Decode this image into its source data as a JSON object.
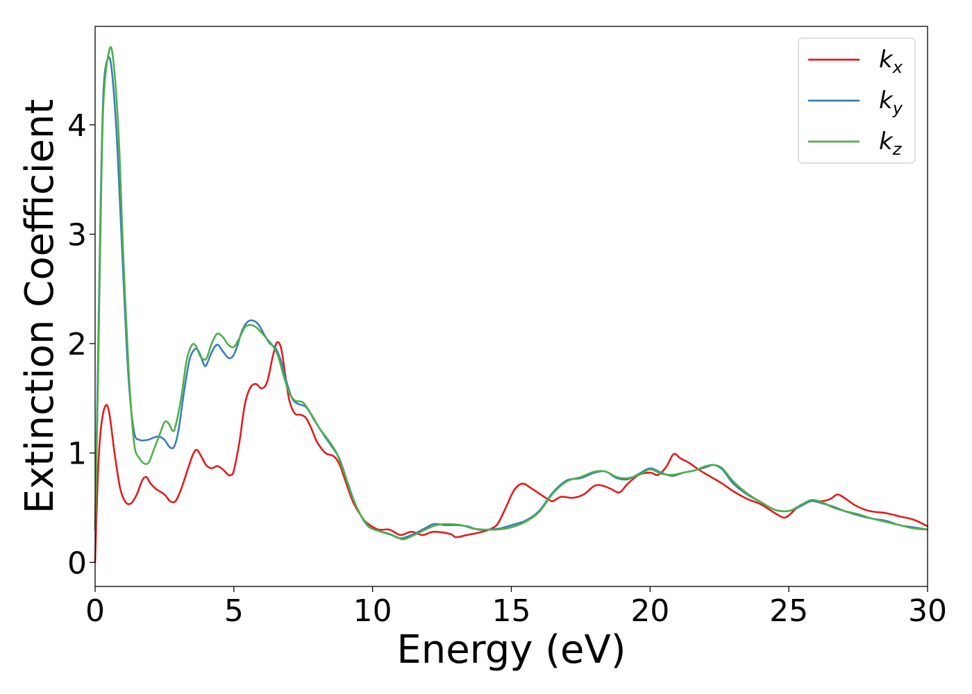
{
  "chart_data": {
    "type": "line",
    "title": "",
    "xlabel": "Energy (eV)",
    "ylabel": "Extinction Coefficient",
    "xlim": [
      0,
      30
    ],
    "ylim": [
      -0.22,
      4.9
    ],
    "xticks": [
      0,
      5,
      10,
      15,
      20,
      25,
      30
    ],
    "yticks": [
      0,
      1,
      2,
      3,
      4
    ],
    "xtick_labels": [
      "0",
      "5",
      "10",
      "15",
      "20",
      "25",
      "30"
    ],
    "ytick_labels": [
      "0",
      "1",
      "2",
      "3",
      "4"
    ],
    "grid": false,
    "legend_position": "top-right",
    "series": [
      {
        "name": "k_x",
        "legend_base": "k",
        "legend_sub": "x",
        "color": "#e41a1c",
        "points": [
          [
            0,
            0
          ],
          [
            0.1,
            0.8
          ],
          [
            0.2,
            1.2
          ],
          [
            0.35,
            1.42
          ],
          [
            0.5,
            1.38
          ],
          [
            0.7,
            1.0
          ],
          [
            0.9,
            0.68
          ],
          [
            1.1,
            0.55
          ],
          [
            1.3,
            0.54
          ],
          [
            1.5,
            0.62
          ],
          [
            1.7,
            0.75
          ],
          [
            1.85,
            0.78
          ],
          [
            2.0,
            0.72
          ],
          [
            2.2,
            0.67
          ],
          [
            2.5,
            0.62
          ],
          [
            2.7,
            0.56
          ],
          [
            2.9,
            0.56
          ],
          [
            3.1,
            0.67
          ],
          [
            3.3,
            0.82
          ],
          [
            3.5,
            0.97
          ],
          [
            3.65,
            1.03
          ],
          [
            3.8,
            0.98
          ],
          [
            4.0,
            0.89
          ],
          [
            4.2,
            0.86
          ],
          [
            4.4,
            0.88
          ],
          [
            4.6,
            0.85
          ],
          [
            4.8,
            0.8
          ],
          [
            4.9,
            0.8
          ],
          [
            5.0,
            0.84
          ],
          [
            5.2,
            1.1
          ],
          [
            5.4,
            1.45
          ],
          [
            5.6,
            1.6
          ],
          [
            5.8,
            1.63
          ],
          [
            6.0,
            1.59
          ],
          [
            6.2,
            1.65
          ],
          [
            6.4,
            1.88
          ],
          [
            6.55,
            2.01
          ],
          [
            6.7,
            1.96
          ],
          [
            6.85,
            1.72
          ],
          [
            7.0,
            1.48
          ],
          [
            7.2,
            1.36
          ],
          [
            7.4,
            1.35
          ],
          [
            7.6,
            1.32
          ],
          [
            7.8,
            1.22
          ],
          [
            8.0,
            1.1
          ],
          [
            8.3,
            1.0
          ],
          [
            8.6,
            0.97
          ],
          [
            8.8,
            0.9
          ],
          [
            9.0,
            0.76
          ],
          [
            9.3,
            0.55
          ],
          [
            9.6,
            0.42
          ],
          [
            9.8,
            0.36
          ],
          [
            10.2,
            0.3
          ],
          [
            10.6,
            0.3
          ],
          [
            11.0,
            0.25
          ],
          [
            11.4,
            0.28
          ],
          [
            11.8,
            0.25
          ],
          [
            12.2,
            0.28
          ],
          [
            12.8,
            0.26
          ],
          [
            13.0,
            0.23
          ],
          [
            13.4,
            0.25
          ],
          [
            13.8,
            0.27
          ],
          [
            14.2,
            0.3
          ],
          [
            14.5,
            0.35
          ],
          [
            14.8,
            0.5
          ],
          [
            15.1,
            0.66
          ],
          [
            15.4,
            0.72
          ],
          [
            15.7,
            0.68
          ],
          [
            16.0,
            0.63
          ],
          [
            16.3,
            0.58
          ],
          [
            16.5,
            0.56
          ],
          [
            16.8,
            0.6
          ],
          [
            17.2,
            0.59
          ],
          [
            17.6,
            0.62
          ],
          [
            18.0,
            0.7
          ],
          [
            18.3,
            0.7
          ],
          [
            18.6,
            0.67
          ],
          [
            18.9,
            0.64
          ],
          [
            19.2,
            0.72
          ],
          [
            19.6,
            0.8
          ],
          [
            20.0,
            0.82
          ],
          [
            20.3,
            0.8
          ],
          [
            20.6,
            0.88
          ],
          [
            20.85,
            0.99
          ],
          [
            21.1,
            0.95
          ],
          [
            21.4,
            0.91
          ],
          [
            21.8,
            0.84
          ],
          [
            22.2,
            0.78
          ],
          [
            22.6,
            0.72
          ],
          [
            23.0,
            0.65
          ],
          [
            23.5,
            0.58
          ],
          [
            24.0,
            0.53
          ],
          [
            24.5,
            0.45
          ],
          [
            24.8,
            0.41
          ],
          [
            25.0,
            0.43
          ],
          [
            25.4,
            0.52
          ],
          [
            25.8,
            0.56
          ],
          [
            26.2,
            0.56
          ],
          [
            26.5,
            0.58
          ],
          [
            26.75,
            0.62
          ],
          [
            27.0,
            0.59
          ],
          [
            27.4,
            0.52
          ],
          [
            27.9,
            0.47
          ],
          [
            28.5,
            0.45
          ],
          [
            29.0,
            0.42
          ],
          [
            29.5,
            0.39
          ],
          [
            30,
            0.33
          ]
        ]
      },
      {
        "name": "k_y",
        "legend_base": "k",
        "legend_sub": "y",
        "color": "#377eb8",
        "points": [
          [
            0,
            0.3
          ],
          [
            0.1,
            1.8
          ],
          [
            0.2,
            3.3
          ],
          [
            0.3,
            4.3
          ],
          [
            0.45,
            4.6
          ],
          [
            0.6,
            4.5
          ],
          [
            0.8,
            3.8
          ],
          [
            1.0,
            2.7
          ],
          [
            1.2,
            1.7
          ],
          [
            1.4,
            1.2
          ],
          [
            1.6,
            1.12
          ],
          [
            1.9,
            1.12
          ],
          [
            2.1,
            1.14
          ],
          [
            2.3,
            1.15
          ],
          [
            2.5,
            1.12
          ],
          [
            2.7,
            1.05
          ],
          [
            2.85,
            1.06
          ],
          [
            3.0,
            1.2
          ],
          [
            3.2,
            1.55
          ],
          [
            3.4,
            1.85
          ],
          [
            3.6,
            1.95
          ],
          [
            3.75,
            1.92
          ],
          [
            3.9,
            1.82
          ],
          [
            4.0,
            1.8
          ],
          [
            4.2,
            1.92
          ],
          [
            4.4,
            1.99
          ],
          [
            4.6,
            1.93
          ],
          [
            4.8,
            1.87
          ],
          [
            4.95,
            1.88
          ],
          [
            5.1,
            1.96
          ],
          [
            5.3,
            2.12
          ],
          [
            5.5,
            2.2
          ],
          [
            5.7,
            2.21
          ],
          [
            5.9,
            2.17
          ],
          [
            6.1,
            2.08
          ],
          [
            6.3,
            2.0
          ],
          [
            6.5,
            1.96
          ],
          [
            6.7,
            1.84
          ],
          [
            6.9,
            1.65
          ],
          [
            7.1,
            1.5
          ],
          [
            7.3,
            1.45
          ],
          [
            7.6,
            1.42
          ],
          [
            7.9,
            1.3
          ],
          [
            8.2,
            1.18
          ],
          [
            8.5,
            1.07
          ],
          [
            8.8,
            0.95
          ],
          [
            9.1,
            0.73
          ],
          [
            9.4,
            0.52
          ],
          [
            9.8,
            0.34
          ],
          [
            10.2,
            0.29
          ],
          [
            10.6,
            0.26
          ],
          [
            11.0,
            0.22
          ],
          [
            11.4,
            0.25
          ],
          [
            11.8,
            0.3
          ],
          [
            12.2,
            0.35
          ],
          [
            12.6,
            0.34
          ],
          [
            13.0,
            0.34
          ],
          [
            13.4,
            0.33
          ],
          [
            13.8,
            0.3
          ],
          [
            14.2,
            0.3
          ],
          [
            14.6,
            0.31
          ],
          [
            15.0,
            0.34
          ],
          [
            15.5,
            0.38
          ],
          [
            16.0,
            0.47
          ],
          [
            16.5,
            0.64
          ],
          [
            17.0,
            0.75
          ],
          [
            17.5,
            0.77
          ],
          [
            18.0,
            0.82
          ],
          [
            18.4,
            0.83
          ],
          [
            18.8,
            0.77
          ],
          [
            19.2,
            0.76
          ],
          [
            19.6,
            0.81
          ],
          [
            20.0,
            0.86
          ],
          [
            20.4,
            0.82
          ],
          [
            20.8,
            0.79
          ],
          [
            21.2,
            0.82
          ],
          [
            21.6,
            0.84
          ],
          [
            22.0,
            0.87
          ],
          [
            22.3,
            0.89
          ],
          [
            22.6,
            0.85
          ],
          [
            23.0,
            0.72
          ],
          [
            23.5,
            0.62
          ],
          [
            24.0,
            0.55
          ],
          [
            24.5,
            0.48
          ],
          [
            25.0,
            0.47
          ],
          [
            25.4,
            0.51
          ],
          [
            25.8,
            0.56
          ],
          [
            26.2,
            0.54
          ],
          [
            26.6,
            0.51
          ],
          [
            27.0,
            0.47
          ],
          [
            27.5,
            0.43
          ],
          [
            28.0,
            0.4
          ],
          [
            28.5,
            0.38
          ],
          [
            29.0,
            0.34
          ],
          [
            29.5,
            0.32
          ],
          [
            30,
            0.3
          ]
        ]
      },
      {
        "name": "k_z",
        "legend_base": "k",
        "legend_sub": "z",
        "color": "#4daf4a",
        "points": [
          [
            0,
            0.3
          ],
          [
            0.1,
            1.6
          ],
          [
            0.2,
            3.1
          ],
          [
            0.3,
            4.2
          ],
          [
            0.5,
            4.67
          ],
          [
            0.65,
            4.6
          ],
          [
            0.85,
            3.9
          ],
          [
            1.0,
            2.9
          ],
          [
            1.2,
            1.8
          ],
          [
            1.4,
            1.1
          ],
          [
            1.6,
            0.95
          ],
          [
            1.8,
            0.9
          ],
          [
            1.95,
            0.92
          ],
          [
            2.1,
            1.02
          ],
          [
            2.3,
            1.15
          ],
          [
            2.5,
            1.28
          ],
          [
            2.65,
            1.27
          ],
          [
            2.8,
            1.2
          ],
          [
            2.9,
            1.25
          ],
          [
            3.1,
            1.5
          ],
          [
            3.3,
            1.85
          ],
          [
            3.5,
            1.99
          ],
          [
            3.65,
            1.97
          ],
          [
            3.8,
            1.88
          ],
          [
            4.0,
            1.86
          ],
          [
            4.2,
            2.0
          ],
          [
            4.4,
            2.09
          ],
          [
            4.6,
            2.06
          ],
          [
            4.8,
            1.99
          ],
          [
            5.0,
            1.97
          ],
          [
            5.2,
            2.05
          ],
          [
            5.4,
            2.15
          ],
          [
            5.6,
            2.17
          ],
          [
            5.8,
            2.15
          ],
          [
            6.0,
            2.1
          ],
          [
            6.2,
            2.04
          ],
          [
            6.4,
            1.98
          ],
          [
            6.6,
            1.88
          ],
          [
            6.8,
            1.7
          ],
          [
            7.0,
            1.55
          ],
          [
            7.2,
            1.48
          ],
          [
            7.5,
            1.46
          ],
          [
            7.8,
            1.35
          ],
          [
            8.1,
            1.22
          ],
          [
            8.4,
            1.12
          ],
          [
            8.7,
            1.0
          ],
          [
            9.0,
            0.8
          ],
          [
            9.3,
            0.58
          ],
          [
            9.6,
            0.42
          ],
          [
            9.9,
            0.32
          ],
          [
            10.3,
            0.28
          ],
          [
            10.8,
            0.24
          ],
          [
            11.1,
            0.21
          ],
          [
            11.5,
            0.25
          ],
          [
            11.9,
            0.3
          ],
          [
            12.3,
            0.34
          ],
          [
            12.7,
            0.35
          ],
          [
            13.2,
            0.34
          ],
          [
            13.6,
            0.31
          ],
          [
            14.0,
            0.3
          ],
          [
            14.5,
            0.3
          ],
          [
            15.0,
            0.32
          ],
          [
            15.5,
            0.37
          ],
          [
            16.0,
            0.46
          ],
          [
            16.5,
            0.63
          ],
          [
            17.0,
            0.74
          ],
          [
            17.5,
            0.78
          ],
          [
            18.0,
            0.83
          ],
          [
            18.4,
            0.83
          ],
          [
            18.8,
            0.78
          ],
          [
            19.2,
            0.77
          ],
          [
            19.6,
            0.8
          ],
          [
            20.0,
            0.85
          ],
          [
            20.4,
            0.81
          ],
          [
            20.8,
            0.8
          ],
          [
            21.2,
            0.82
          ],
          [
            21.6,
            0.84
          ],
          [
            22.0,
            0.88
          ],
          [
            22.3,
            0.89
          ],
          [
            22.6,
            0.86
          ],
          [
            23.0,
            0.74
          ],
          [
            23.5,
            0.63
          ],
          [
            24.0,
            0.55
          ],
          [
            24.5,
            0.48
          ],
          [
            25.0,
            0.47
          ],
          [
            25.4,
            0.52
          ],
          [
            25.8,
            0.57
          ],
          [
            26.2,
            0.55
          ],
          [
            26.6,
            0.5
          ],
          [
            27.0,
            0.47
          ],
          [
            27.5,
            0.44
          ],
          [
            28.0,
            0.4
          ],
          [
            28.5,
            0.37
          ],
          [
            29.0,
            0.34
          ],
          [
            29.5,
            0.31
          ],
          [
            30,
            0.3
          ]
        ]
      }
    ]
  }
}
